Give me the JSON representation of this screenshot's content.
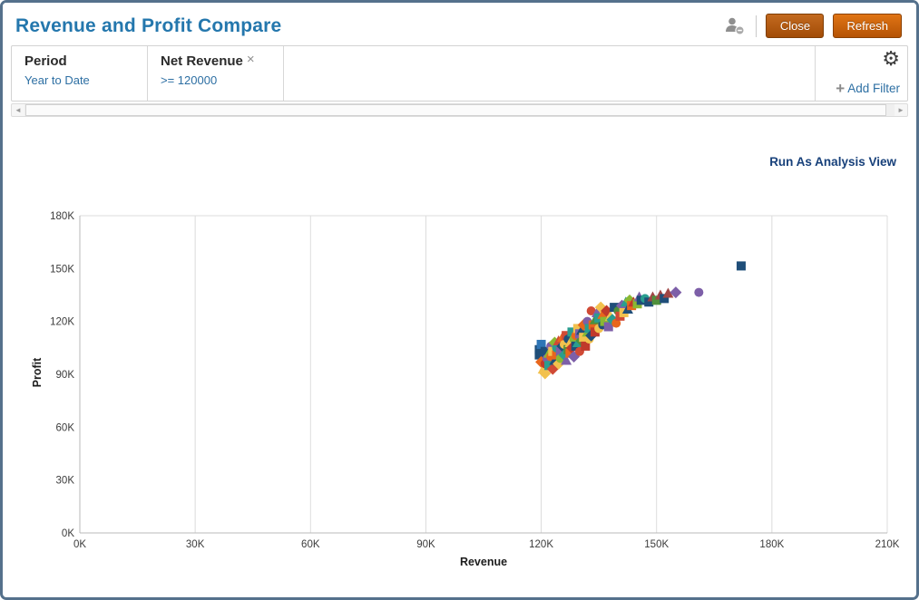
{
  "window": {
    "title": "Revenue and Profit Compare"
  },
  "header": {
    "close_label": "Close",
    "refresh_label": "Refresh"
  },
  "filters": {
    "items": [
      {
        "name": "Period",
        "value": "Year to Date"
      },
      {
        "name": "Net Revenue",
        "value": ">= 120000"
      }
    ],
    "add_filter_label": "Add Filter"
  },
  "icons": {
    "remove": "×",
    "plus": "+",
    "gear": "⚙",
    "scroll_left": "◄",
    "scroll_right": "►"
  },
  "main": {
    "run_as_link": "Run As Analysis View"
  },
  "chart_data": {
    "type": "scatter",
    "xlabel": "Revenue",
    "ylabel": "Profit",
    "xlim": [
      0,
      210
    ],
    "ylim": [
      0,
      180
    ],
    "x_ticks": [
      0,
      30,
      60,
      90,
      120,
      150,
      180,
      210
    ],
    "x_tick_labels": [
      "0K",
      "30K",
      "60K",
      "90K",
      "120K",
      "150K",
      "180K",
      "210K"
    ],
    "y_ticks": [
      0,
      30,
      60,
      90,
      120,
      150,
      180
    ],
    "y_tick_labels": [
      "0K",
      "30K",
      "60K",
      "90K",
      "120K",
      "150K",
      "180K"
    ],
    "unit": "K",
    "grid": "vertical",
    "legend": "none",
    "points": [
      {
        "x": 119.5,
        "y": 104,
        "s": "square",
        "c": "#1f4e79"
      },
      {
        "x": 119.5,
        "y": 101,
        "s": "square",
        "c": "#1f4e79"
      },
      {
        "x": 120,
        "y": 107,
        "s": "square",
        "c": "#2e75b6"
      },
      {
        "x": 120,
        "y": 97,
        "s": "diamond",
        "c": "#e8661c"
      },
      {
        "x": 120.5,
        "y": 93,
        "s": "triangle",
        "c": "#f2c14e"
      },
      {
        "x": 121,
        "y": 90.5,
        "s": "diamond",
        "c": "#f2c14e"
      },
      {
        "x": 121,
        "y": 96,
        "s": "circle",
        "c": "#c0392b"
      },
      {
        "x": 121,
        "y": 103,
        "s": "square",
        "c": "#1f4e79"
      },
      {
        "x": 121.5,
        "y": 99,
        "s": "circle",
        "c": "#7d5fa8"
      },
      {
        "x": 122,
        "y": 102,
        "s": "triangle",
        "c": "#8ab832"
      },
      {
        "x": 122,
        "y": 95,
        "s": "square",
        "c": "#2a9d8f"
      },
      {
        "x": 122.5,
        "y": 106,
        "s": "circle",
        "c": "#7d5fa8"
      },
      {
        "x": 122.5,
        "y": 100,
        "s": "circle",
        "c": "#e8661c"
      },
      {
        "x": 123,
        "y": 93,
        "s": "diamond",
        "c": "#d04a35"
      },
      {
        "x": 123,
        "y": 103,
        "s": "square",
        "c": "#f2c14e"
      },
      {
        "x": 123.5,
        "y": 108,
        "s": "diamond",
        "c": "#8ab832"
      },
      {
        "x": 123.5,
        "y": 98,
        "s": "triangle",
        "c": "#1f4e79"
      },
      {
        "x": 124,
        "y": 101,
        "s": "square",
        "c": "#e8661c"
      },
      {
        "x": 124,
        "y": 105,
        "s": "circle",
        "c": "#2a9d8f"
      },
      {
        "x": 124.5,
        "y": 96,
        "s": "diamond",
        "c": "#f2c14e"
      },
      {
        "x": 124.5,
        "y": 109,
        "s": "triangle",
        "c": "#d04a35"
      },
      {
        "x": 125,
        "y": 103,
        "s": "square",
        "c": "#7d5fa8"
      },
      {
        "x": 125,
        "y": 99,
        "s": "circle",
        "c": "#8ab832"
      },
      {
        "x": 125.5,
        "y": 106,
        "s": "diamond",
        "c": "#1f4e79"
      },
      {
        "x": 125.5,
        "y": 111,
        "s": "triangle",
        "c": "#e8661c"
      },
      {
        "x": 126,
        "y": 101,
        "s": "diamond",
        "c": "#2a9d8f"
      },
      {
        "x": 126,
        "y": 107,
        "s": "circle",
        "c": "#f2c14e"
      },
      {
        "x": 126.5,
        "y": 112,
        "s": "square",
        "c": "#d04a35"
      },
      {
        "x": 126.5,
        "y": 98,
        "s": "triangle",
        "c": "#7d5fa8"
      },
      {
        "x": 127,
        "y": 104,
        "s": "square",
        "c": "#4f8f3b"
      },
      {
        "x": 127,
        "y": 110,
        "s": "circle",
        "c": "#1f4e79"
      },
      {
        "x": 127.5,
        "y": 102,
        "s": "square",
        "c": "#e8661c"
      },
      {
        "x": 127.5,
        "y": 108,
        "s": "triangle",
        "c": "#f2c14e"
      },
      {
        "x": 128,
        "y": 114,
        "s": "square",
        "c": "#2a9d8f"
      },
      {
        "x": 128,
        "y": 105,
        "s": "diamond",
        "c": "#c0392b"
      },
      {
        "x": 128.5,
        "y": 100,
        "s": "diamond",
        "c": "#7d5fa8"
      },
      {
        "x": 128.5,
        "y": 110,
        "s": "circle",
        "c": "#8ab832"
      },
      {
        "x": 129,
        "y": 106,
        "s": "square",
        "c": "#1f4e79"
      },
      {
        "x": 129,
        "y": 112,
        "s": "circle",
        "c": "#e8661c"
      },
      {
        "x": 129.5,
        "y": 116,
        "s": "square",
        "c": "#f2c14e"
      },
      {
        "x": 129.5,
        "y": 108,
        "s": "triangle",
        "c": "#2a9d8f"
      },
      {
        "x": 130,
        "y": 113,
        "s": "square",
        "c": "#7d5fa8"
      },
      {
        "x": 130,
        "y": 103,
        "s": "circle",
        "c": "#d04a35"
      },
      {
        "x": 130.5,
        "y": 109,
        "s": "diamond",
        "c": "#4f8f3b"
      },
      {
        "x": 130.5,
        "y": 115,
        "s": "triangle",
        "c": "#1f4e79"
      },
      {
        "x": 131,
        "y": 111,
        "s": "square",
        "c": "#f2c14e"
      },
      {
        "x": 131,
        "y": 118,
        "s": "diamond",
        "c": "#e8661c"
      },
      {
        "x": 131.5,
        "y": 106,
        "s": "square",
        "c": "#c0392b"
      },
      {
        "x": 132,
        "y": 114,
        "s": "triangle",
        "c": "#8ab832"
      },
      {
        "x": 132,
        "y": 120,
        "s": "circle",
        "c": "#7d5fa8"
      },
      {
        "x": 132.5,
        "y": 110,
        "s": "circle",
        "c": "#f2c14e"
      },
      {
        "x": 132.5,
        "y": 116,
        "s": "square",
        "c": "#2a9d8f"
      },
      {
        "x": 133,
        "y": 126,
        "s": "circle",
        "c": "#d04a35"
      },
      {
        "x": 133,
        "y": 112,
        "s": "diamond",
        "c": "#1f4e79"
      },
      {
        "x": 133.5,
        "y": 118,
        "s": "square",
        "c": "#e8661c"
      },
      {
        "x": 134,
        "y": 114,
        "s": "square",
        "c": "#c0392b"
      },
      {
        "x": 134,
        "y": 121,
        "s": "triangle",
        "c": "#4f8f3b"
      },
      {
        "x": 134.5,
        "y": 125,
        "s": "triangle",
        "c": "#7d5fa8"
      },
      {
        "x": 135,
        "y": 116,
        "s": "circle",
        "c": "#f2c14e"
      },
      {
        "x": 135,
        "y": 122,
        "s": "square",
        "c": "#2a9d8f"
      },
      {
        "x": 135.5,
        "y": 128,
        "s": "diamond",
        "c": "#f2c14e"
      },
      {
        "x": 136,
        "y": 118,
        "s": "circle",
        "c": "#1f4e79"
      },
      {
        "x": 136,
        "y": 124,
        "s": "triangle",
        "c": "#e8661c"
      },
      {
        "x": 136.5,
        "y": 120,
        "s": "square",
        "c": "#8ab832"
      },
      {
        "x": 137,
        "y": 126,
        "s": "diamond",
        "c": "#c0392b"
      },
      {
        "x": 137.5,
        "y": 117,
        "s": "square",
        "c": "#7d5fa8"
      },
      {
        "x": 138,
        "y": 123,
        "s": "triangle",
        "c": "#f2c14e"
      },
      {
        "x": 138.5,
        "y": 121,
        "s": "diamond",
        "c": "#2a9d8f"
      },
      {
        "x": 139,
        "y": 128,
        "s": "square",
        "c": "#1f4e79"
      },
      {
        "x": 139.5,
        "y": 119,
        "s": "circle",
        "c": "#e8661c"
      },
      {
        "x": 140,
        "y": 126,
        "s": "circle",
        "c": "#4f8f3b"
      },
      {
        "x": 140.5,
        "y": 123,
        "s": "square",
        "c": "#d04a35"
      },
      {
        "x": 141,
        "y": 129,
        "s": "diamond",
        "c": "#7d5fa8"
      },
      {
        "x": 141.5,
        "y": 125,
        "s": "square",
        "c": "#f2c14e"
      },
      {
        "x": 142,
        "y": 131,
        "s": "triangle",
        "c": "#2a9d8f"
      },
      {
        "x": 142.5,
        "y": 127,
        "s": "triangle",
        "c": "#1f4e79"
      },
      {
        "x": 143,
        "y": 132,
        "s": "diamond",
        "c": "#8ab832"
      },
      {
        "x": 143.5,
        "y": 129,
        "s": "square",
        "c": "#e8661c"
      },
      {
        "x": 144,
        "y": 131,
        "s": "triangle",
        "c": "#c0392b"
      },
      {
        "x": 145,
        "y": 130,
        "s": "square",
        "c": "#8ab832"
      },
      {
        "x": 145.5,
        "y": 134,
        "s": "triangle",
        "c": "#7d5fa8"
      },
      {
        "x": 146,
        "y": 132,
        "s": "square",
        "c": "#1f4e79"
      },
      {
        "x": 147,
        "y": 133,
        "s": "circle",
        "c": "#2a9d8f"
      },
      {
        "x": 148,
        "y": 131,
        "s": "square",
        "c": "#1f4e79"
      },
      {
        "x": 149,
        "y": 134,
        "s": "triangle",
        "c": "#a04545"
      },
      {
        "x": 150,
        "y": 132,
        "s": "square",
        "c": "#4f8f3b"
      },
      {
        "x": 151,
        "y": 135,
        "s": "triangle",
        "c": "#a04545"
      },
      {
        "x": 152,
        "y": 133,
        "s": "square",
        "c": "#1f4e79"
      },
      {
        "x": 153,
        "y": 136,
        "s": "triangle",
        "c": "#a04545"
      },
      {
        "x": 155,
        "y": 136.5,
        "s": "diamond",
        "c": "#7d5fa8"
      },
      {
        "x": 161,
        "y": 136.5,
        "s": "circle",
        "c": "#7d5fa8"
      },
      {
        "x": 172,
        "y": 151.5,
        "s": "square",
        "c": "#1f4e79"
      }
    ]
  },
  "colors": {
    "frame_border": "#55718c",
    "title": "#2477ad",
    "link": "#17407a",
    "filter_value": "#2d6fa3",
    "close_button": "#a85410",
    "refresh_button": "#c55e0c",
    "gridline": "#dcdcdc",
    "axis": "#b9b9b9"
  }
}
